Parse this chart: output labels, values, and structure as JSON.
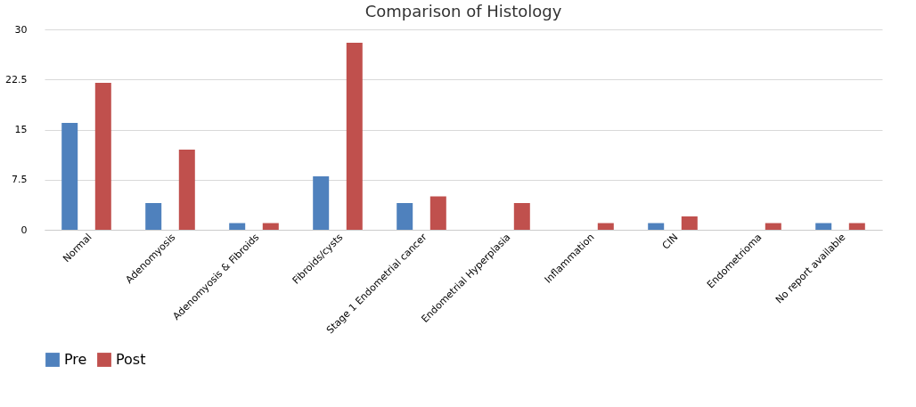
{
  "chart_data": {
    "type": "bar",
    "title": "Comparison of Histology",
    "categories": [
      "Normal",
      "Adenomyosis",
      "Adenomyosis & Fibroids",
      "Fibroids/cysts",
      "Stage 1 Endometrial cancer",
      "Endometrial Hyperplasia",
      "Inflammation",
      "CIN",
      "Endometrioma",
      "No report available"
    ],
    "series": [
      {
        "name": "Pre",
        "color": "#4f81bd",
        "values": [
          16,
          4,
          1,
          8,
          4,
          null,
          null,
          1,
          null,
          1
        ]
      },
      {
        "name": "Post",
        "color": "#c0504d",
        "values": [
          22,
          12,
          1,
          28,
          5,
          4,
          1,
          2,
          1,
          1
        ]
      }
    ],
    "ylim": [
      0,
      30
    ],
    "yticks": [
      0,
      7.5,
      15,
      22.5,
      30
    ],
    "grid": "y",
    "legend": "bottom"
  }
}
